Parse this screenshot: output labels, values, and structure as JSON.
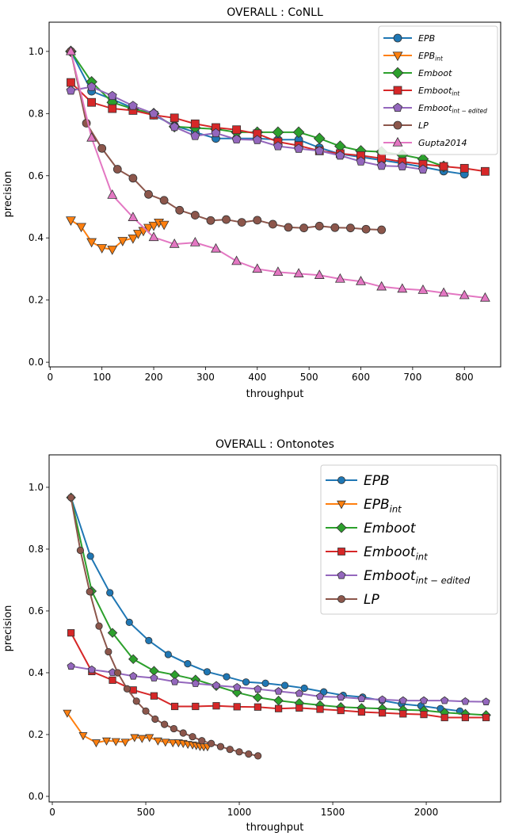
{
  "chart_data": [
    {
      "type": "line",
      "title": "OVERALL : CoNLL",
      "xlabel": "throughput",
      "ylabel": "precision",
      "xlim": [
        -2,
        870
      ],
      "ylim": [
        -0.015,
        1.094
      ],
      "xticks": [
        0,
        100,
        200,
        300,
        400,
        500,
        600,
        700,
        800
      ],
      "yticks": [
        0.0,
        0.2,
        0.4,
        0.6,
        0.8,
        1.0
      ],
      "legend_position": "top-right",
      "legend_size": "small",
      "series": [
        {
          "name": "EPB",
          "sub": "",
          "color": "#1f77b4",
          "marker": "circle",
          "x": [
            40,
            80,
            120,
            160,
            200,
            240,
            280,
            320,
            360,
            400,
            440,
            480,
            520,
            560,
            600,
            640,
            680,
            720,
            760,
            800
          ],
          "y": [
            1.0,
            0.872,
            0.846,
            0.818,
            0.795,
            0.761,
            0.74,
            0.72,
            0.72,
            0.72,
            0.716,
            0.716,
            0.69,
            0.67,
            0.66,
            0.65,
            0.64,
            0.628,
            0.615,
            0.605
          ]
        },
        {
          "name": "EPB",
          "sub": "int",
          "color": "#ff7f0e",
          "marker": "triangle-down",
          "x": [
            40,
            60,
            80,
            100,
            120,
            140,
            160,
            170,
            180,
            190,
            200,
            210,
            220
          ],
          "y": [
            0.457,
            0.436,
            0.387,
            0.368,
            0.363,
            0.391,
            0.399,
            0.414,
            0.423,
            0.433,
            0.44,
            0.45,
            0.443
          ]
        },
        {
          "name": "Emboot",
          "sub": "",
          "color": "#2ca02c",
          "marker": "diamond",
          "x": [
            40,
            80,
            120,
            160,
            200,
            240,
            280,
            320,
            360,
            400,
            440,
            480,
            520,
            560,
            600,
            640,
            680,
            720,
            760
          ],
          "y": [
            1.0,
            0.902,
            0.836,
            0.815,
            0.8,
            0.758,
            0.754,
            0.75,
            0.74,
            0.74,
            0.74,
            0.74,
            0.72,
            0.695,
            0.68,
            0.677,
            0.667,
            0.654,
            0.63
          ]
        },
        {
          "name": "Emboot",
          "sub": "int",
          "color": "#d62728",
          "marker": "square",
          "x": [
            40,
            80,
            120,
            160,
            200,
            240,
            280,
            320,
            360,
            400,
            440,
            480,
            520,
            560,
            600,
            640,
            680,
            720,
            760,
            800,
            840
          ],
          "y": [
            0.9,
            0.836,
            0.816,
            0.81,
            0.795,
            0.786,
            0.767,
            0.755,
            0.748,
            0.735,
            0.709,
            0.697,
            0.68,
            0.671,
            0.665,
            0.656,
            0.645,
            0.637,
            0.63,
            0.624,
            0.614
          ]
        },
        {
          "name": "Emboot",
          "sub": "int − edited",
          "color": "#9467bd",
          "marker": "pentagon",
          "x": [
            40,
            80,
            120,
            160,
            200,
            240,
            280,
            320,
            360,
            400,
            440,
            480,
            520,
            560,
            600,
            640,
            680,
            720
          ],
          "y": [
            0.874,
            0.886,
            0.857,
            0.825,
            0.8,
            0.757,
            0.728,
            0.737,
            0.717,
            0.715,
            0.695,
            0.687,
            0.68,
            0.665,
            0.646,
            0.632,
            0.63,
            0.62
          ]
        },
        {
          "name": "LP",
          "sub": "",
          "color": "#8c564b",
          "marker": "circle",
          "x": [
            40,
            70,
            100,
            130,
            160,
            190,
            220,
            250,
            280,
            310,
            340,
            370,
            400,
            430,
            460,
            490,
            520,
            550,
            580,
            610,
            640
          ],
          "y": [
            1.0,
            0.769,
            0.688,
            0.621,
            0.592,
            0.54,
            0.521,
            0.489,
            0.473,
            0.456,
            0.459,
            0.45,
            0.457,
            0.444,
            0.434,
            0.432,
            0.438,
            0.433,
            0.432,
            0.428,
            0.426
          ]
        },
        {
          "name": "Gupta2014",
          "sub": "",
          "color": "#e377c2",
          "marker": "triangle-up",
          "x": [
            40,
            80,
            120,
            160,
            200,
            240,
            280,
            320,
            360,
            400,
            440,
            480,
            520,
            560,
            600,
            640,
            680,
            720,
            760,
            800,
            840
          ],
          "y": [
            1.0,
            0.722,
            0.538,
            0.466,
            0.402,
            0.38,
            0.385,
            0.365,
            0.325,
            0.3,
            0.29,
            0.285,
            0.28,
            0.268,
            0.26,
            0.243,
            0.236,
            0.232,
            0.223,
            0.215,
            0.207
          ]
        }
      ]
    },
    {
      "type": "line",
      "title": "OVERALL : Ontonotes",
      "xlabel": "throughput",
      "ylabel": "precision",
      "xlim": [
        -17,
        2398
      ],
      "ylim": [
        -0.018,
        1.105
      ],
      "xticks": [
        0,
        500,
        1000,
        1500,
        2000
      ],
      "yticks": [
        0.0,
        0.2,
        0.4,
        0.6,
        0.8,
        1.0
      ],
      "legend_position": "top-right",
      "legend_size": "large",
      "series": [
        {
          "name": "EPB",
          "sub": "",
          "color": "#1f77b4",
          "marker": "circle",
          "x": [
            100,
            204,
            308,
            412,
            516,
            620,
            724,
            828,
            932,
            1036,
            1140,
            1244,
            1348,
            1452,
            1556,
            1660,
            1764,
            1868,
            1972,
            2076,
            2180
          ],
          "y": [
            0.967,
            0.777,
            0.659,
            0.563,
            0.504,
            0.459,
            0.429,
            0.403,
            0.387,
            0.37,
            0.366,
            0.359,
            0.35,
            0.338,
            0.327,
            0.321,
            0.31,
            0.299,
            0.293,
            0.284,
            0.276
          ]
        },
        {
          "name": "EPB",
          "sub": "int",
          "color": "#ff7f0e",
          "marker": "triangle-down",
          "x": [
            80,
            165,
            235,
            290,
            340,
            390,
            440,
            480,
            520,
            565,
            605,
            645,
            675,
            700,
            725,
            750,
            770,
            790,
            810,
            830
          ],
          "y": [
            0.27,
            0.197,
            0.174,
            0.18,
            0.178,
            0.176,
            0.191,
            0.188,
            0.191,
            0.18,
            0.176,
            0.174,
            0.174,
            0.172,
            0.169,
            0.167,
            0.165,
            0.162,
            0.161,
            0.161
          ]
        },
        {
          "name": "Emboot",
          "sub": "",
          "color": "#2ca02c",
          "marker": "diamond",
          "x": [
            100,
            211,
            322,
            433,
            544,
            655,
            766,
            877,
            988,
            1099,
            1210,
            1321,
            1432,
            1543,
            1654,
            1765,
            1876,
            1987,
            2098,
            2209,
            2320
          ],
          "y": [
            0.967,
            0.664,
            0.529,
            0.444,
            0.406,
            0.393,
            0.378,
            0.357,
            0.336,
            0.32,
            0.31,
            0.302,
            0.295,
            0.289,
            0.286,
            0.284,
            0.28,
            0.278,
            0.271,
            0.267,
            0.263
          ]
        },
        {
          "name": "Emboot",
          "sub": "int",
          "color": "#d62728",
          "marker": "square",
          "x": [
            100,
            211,
            322,
            433,
            544,
            655,
            766,
            877,
            988,
            1099,
            1210,
            1321,
            1432,
            1543,
            1654,
            1765,
            1876,
            1987,
            2098,
            2209,
            2320
          ],
          "y": [
            0.529,
            0.404,
            0.376,
            0.344,
            0.325,
            0.291,
            0.291,
            0.293,
            0.29,
            0.289,
            0.284,
            0.286,
            0.282,
            0.278,
            0.273,
            0.27,
            0.267,
            0.265,
            0.255,
            0.255,
            0.255
          ]
        },
        {
          "name": "Emboot",
          "sub": "int − edited",
          "color": "#9467bd",
          "marker": "pentagon",
          "x": [
            100,
            211,
            322,
            433,
            544,
            655,
            766,
            877,
            988,
            1099,
            1210,
            1321,
            1432,
            1543,
            1654,
            1765,
            1876,
            1987,
            2098,
            2209,
            2320
          ],
          "y": [
            0.421,
            0.41,
            0.401,
            0.389,
            0.383,
            0.371,
            0.365,
            0.359,
            0.353,
            0.347,
            0.34,
            0.333,
            0.323,
            0.321,
            0.316,
            0.313,
            0.31,
            0.31,
            0.31,
            0.307,
            0.306
          ]
        },
        {
          "name": "LP",
          "sub": "",
          "color": "#8c564b",
          "marker": "circle",
          "x": [
            100,
            150,
            200,
            250,
            300,
            350,
            400,
            450,
            500,
            550,
            600,
            650,
            700,
            750,
            800,
            850,
            900,
            950,
            1000,
            1050,
            1100
          ],
          "y": [
            0.967,
            0.796,
            0.662,
            0.551,
            0.468,
            0.4,
            0.348,
            0.308,
            0.276,
            0.25,
            0.233,
            0.219,
            0.205,
            0.193,
            0.18,
            0.171,
            0.161,
            0.152,
            0.144,
            0.137,
            0.131
          ]
        }
      ]
    }
  ]
}
